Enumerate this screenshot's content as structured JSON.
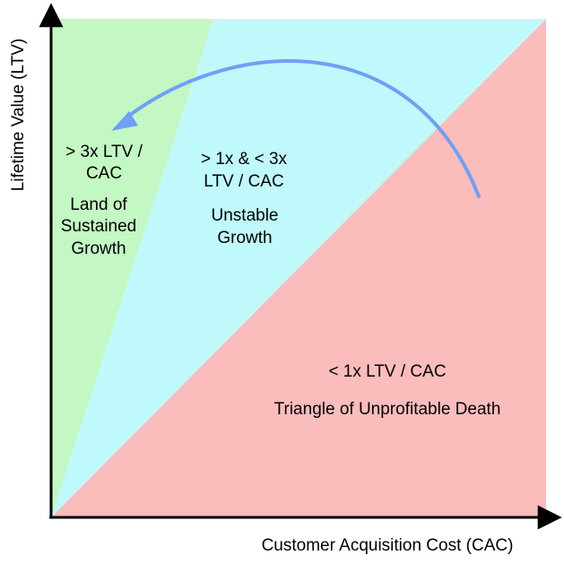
{
  "axes": {
    "x_label": "Customer Acquisition Cost (CAC)",
    "y_label": "Lifetime Value (LTV)"
  },
  "regions": {
    "green": {
      "color": "#c3f7c3",
      "ratio_lines": [
        "> 3x LTV /",
        "CAC"
      ],
      "name_lines": [
        "Land of",
        "Sustained",
        "Growth"
      ]
    },
    "cyan": {
      "color": "#bff9fb",
      "ratio_lines": [
        "> 1x & < 3x",
        "LTV / CAC"
      ],
      "name_lines": [
        "Unstable",
        "Growth"
      ]
    },
    "red": {
      "color": "#fbbcbc",
      "ratio_lines": [
        "< 1x LTV / CAC"
      ],
      "name_lines": [
        "Triangle of Unprofitable Death"
      ]
    }
  },
  "arrow": {
    "color": "#6fa0f5",
    "meaning": "movement from Triangle of Unprofitable Death toward Land of Sustained Growth"
  }
}
